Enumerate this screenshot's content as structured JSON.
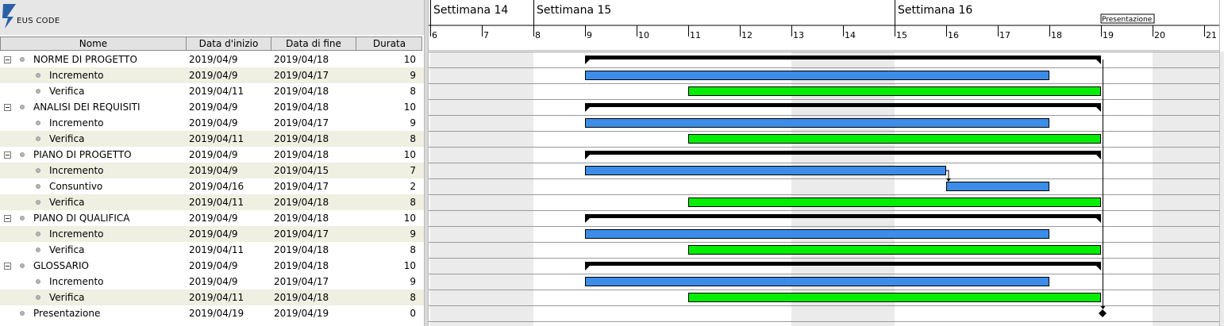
{
  "app": {
    "logo_text": "EUS CODE"
  },
  "table": {
    "headers": {
      "name": "Nome",
      "start": "Data d'inizio",
      "end": "Data di fine",
      "duration": "Durata"
    }
  },
  "chart_data": {
    "type": "gantt",
    "x_axis": {
      "unit": "day",
      "range": [
        6,
        21
      ],
      "ticks": [
        6,
        7,
        8,
        9,
        10,
        11,
        12,
        13,
        14,
        15,
        16,
        17,
        18,
        19,
        20,
        21
      ],
      "weeks": [
        {
          "label": "Settimana  14",
          "start_day": 6
        },
        {
          "label": "Settimana  15",
          "start_day": 8
        },
        {
          "label": "Settimana  16",
          "start_day": 15
        }
      ],
      "shaded_days": [
        6,
        7,
        13,
        14,
        20,
        21
      ]
    },
    "tasks": [
      {
        "name": "NORME DI PROGETTO",
        "start": "2019/04/9",
        "end": "2019/04/18",
        "duration": "10",
        "group": true,
        "color": "#000000",
        "start_day": 9,
        "end_day": 19
      },
      {
        "name": "Incremento",
        "start": "2019/04/9",
        "end": "2019/04/17",
        "duration": "9",
        "group": false,
        "color": "#3c8ce8",
        "start_day": 9,
        "end_day": 18
      },
      {
        "name": "Verifica",
        "start": "2019/04/11",
        "end": "2019/04/18",
        "duration": "8",
        "group": false,
        "color": "#00ee00",
        "start_day": 11,
        "end_day": 19
      },
      {
        "name": "ANALISI DEI REQUISITI",
        "start": "2019/04/9",
        "end": "2019/04/18",
        "duration": "10",
        "group": true,
        "color": "#000000",
        "start_day": 9,
        "end_day": 19
      },
      {
        "name": "Incremento",
        "start": "2019/04/9",
        "end": "2019/04/17",
        "duration": "9",
        "group": false,
        "color": "#3c8ce8",
        "start_day": 9,
        "end_day": 18
      },
      {
        "name": "Verifica",
        "start": "2019/04/11",
        "end": "2019/04/18",
        "duration": "8",
        "group": false,
        "color": "#00ee00",
        "start_day": 11,
        "end_day": 19
      },
      {
        "name": "PIANO DI PROGETTO",
        "start": "2019/04/9",
        "end": "2019/04/18",
        "duration": "10",
        "group": true,
        "color": "#000000",
        "start_day": 9,
        "end_day": 19
      },
      {
        "name": "Incremento",
        "start": "2019/04/9",
        "end": "2019/04/15",
        "duration": "7",
        "group": false,
        "color": "#3c8ce8",
        "start_day": 9,
        "end_day": 16
      },
      {
        "name": "Consuntivo",
        "start": "2019/04/16",
        "end": "2019/04/17",
        "duration": "2",
        "group": false,
        "color": "#3c8ce8",
        "start_day": 16,
        "end_day": 18
      },
      {
        "name": "Verifica",
        "start": "2019/04/11",
        "end": "2019/04/18",
        "duration": "8",
        "group": false,
        "color": "#00ee00",
        "start_day": 11,
        "end_day": 19
      },
      {
        "name": "PIANO DI QUALIFICA",
        "start": "2019/04/9",
        "end": "2019/04/18",
        "duration": "10",
        "group": true,
        "color": "#000000",
        "start_day": 9,
        "end_day": 19
      },
      {
        "name": "Incremento",
        "start": "2019/04/9",
        "end": "2019/04/17",
        "duration": "9",
        "group": false,
        "color": "#3c8ce8",
        "start_day": 9,
        "end_day": 18
      },
      {
        "name": "Verifica",
        "start": "2019/04/11",
        "end": "2019/04/18",
        "duration": "8",
        "group": false,
        "color": "#00ee00",
        "start_day": 11,
        "end_day": 19
      },
      {
        "name": "GLOSSARIO",
        "start": "2019/04/9",
        "end": "2019/04/18",
        "duration": "10",
        "group": true,
        "color": "#000000",
        "start_day": 9,
        "end_day": 19
      },
      {
        "name": "Incremento",
        "start": "2019/04/9",
        "end": "2019/04/17",
        "duration": "9",
        "group": false,
        "color": "#3c8ce8",
        "start_day": 9,
        "end_day": 18
      },
      {
        "name": "Verifica",
        "start": "2019/04/11",
        "end": "2019/04/18",
        "duration": "8",
        "group": false,
        "color": "#00ee00",
        "start_day": 11,
        "end_day": 19
      },
      {
        "name": "Presentazione",
        "start": "2019/04/19",
        "end": "2019/04/19",
        "duration": "0",
        "group": false,
        "milestone": true,
        "color": "#000000",
        "start_day": 19,
        "end_day": 19
      }
    ],
    "dependencies": [
      {
        "from": 7,
        "to": 8
      }
    ],
    "milestone_marker": {
      "label": "Presentazione",
      "day": 19
    },
    "colors": {
      "weekend": "#ebebeb",
      "grid": "#9a9a9a",
      "summary": "#000000"
    }
  }
}
